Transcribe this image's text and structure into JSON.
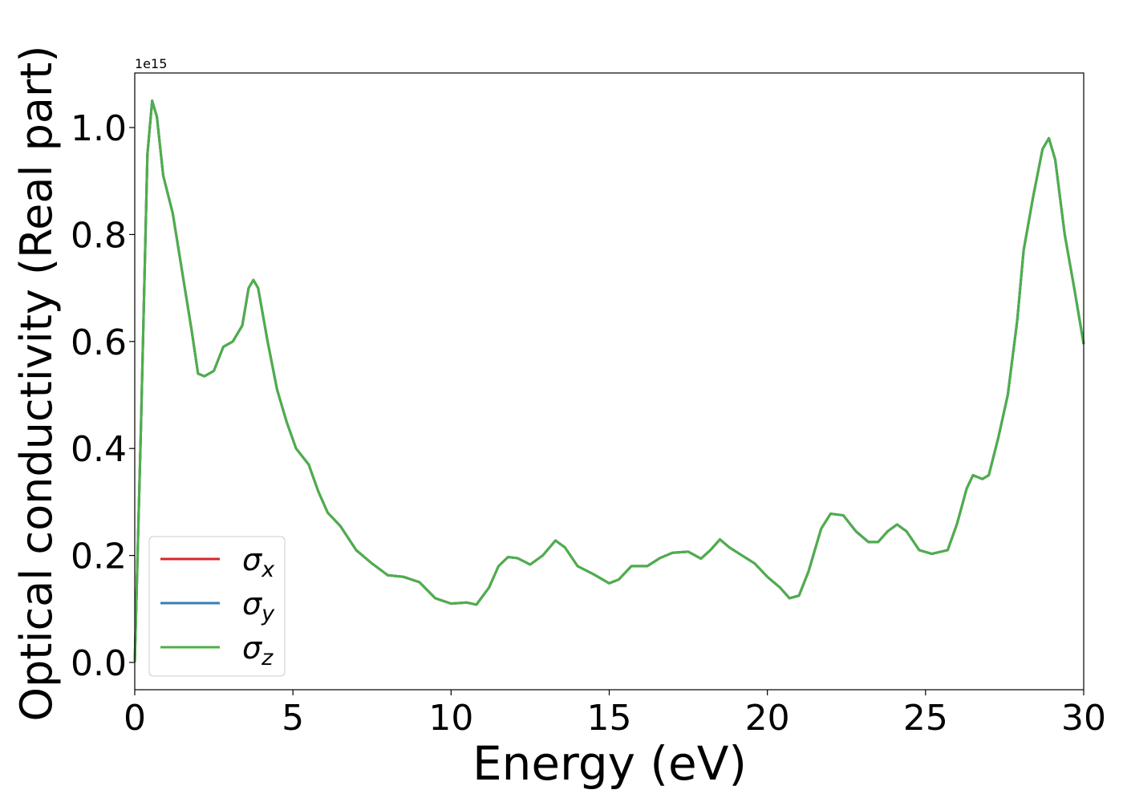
{
  "chart_data": {
    "type": "line",
    "xlabel": "Energy (eV)",
    "ylabel": "Optical conductivity (Real part)",
    "y_offset_label": "1e15",
    "xlim": [
      0,
      30
    ],
    "ylim": [
      -0.051,
      1.102
    ],
    "xticks": [
      0,
      5,
      10,
      15,
      20,
      25,
      30
    ],
    "yticks": [
      {
        "value": 0,
        "label": "0.0"
      },
      0.2,
      0.4,
      0.6,
      0.8,
      {
        "value": 1,
        "label": "1.0"
      }
    ],
    "legend": "lower left",
    "grid": false,
    "x": [
      0,
      0.2,
      0.4,
      0.55,
      0.7,
      0.9,
      1.2,
      1.5,
      1.8,
      2.0,
      2.2,
      2.5,
      2.8,
      3.1,
      3.4,
      3.6,
      3.75,
      3.9,
      4.2,
      4.5,
      4.8,
      5.1,
      5.5,
      5.8,
      6.1,
      6.5,
      7.0,
      7.5,
      8.0,
      8.5,
      9.0,
      9.5,
      10.0,
      10.5,
      10.8,
      11.2,
      11.5,
      11.8,
      12.1,
      12.5,
      12.9,
      13.3,
      13.6,
      14.0,
      14.5,
      15.0,
      15.3,
      15.7,
      16.2,
      16.6,
      17.0,
      17.5,
      17.9,
      18.2,
      18.5,
      18.8,
      19.2,
      19.6,
      20.0,
      20.4,
      20.7,
      21.0,
      21.3,
      21.7,
      22.0,
      22.4,
      22.8,
      23.2,
      23.5,
      23.8,
      24.1,
      24.4,
      24.8,
      25.2,
      25.7,
      26.0,
      26.3,
      26.5,
      26.8,
      27.0,
      27.3,
      27.6,
      27.9,
      28.1,
      28.4,
      28.7,
      28.9,
      29.1,
      29.4,
      29.7,
      30.0
    ],
    "series": [
      {
        "name": "σx",
        "color": "#d62728",
        "values": [
          0.0,
          0.45,
          0.95,
          1.05,
          1.02,
          0.91,
          0.84,
          0.73,
          0.62,
          0.54,
          0.535,
          0.545,
          0.59,
          0.6,
          0.63,
          0.7,
          0.715,
          0.7,
          0.6,
          0.51,
          0.45,
          0.4,
          0.37,
          0.32,
          0.28,
          0.255,
          0.21,
          0.185,
          0.163,
          0.16,
          0.15,
          0.12,
          0.11,
          0.112,
          0.108,
          0.14,
          0.18,
          0.197,
          0.195,
          0.183,
          0.2,
          0.228,
          0.215,
          0.18,
          0.165,
          0.148,
          0.155,
          0.18,
          0.18,
          0.195,
          0.205,
          0.207,
          0.194,
          0.21,
          0.23,
          0.215,
          0.2,
          0.185,
          0.16,
          0.14,
          0.12,
          0.125,
          0.17,
          0.25,
          0.278,
          0.275,
          0.245,
          0.225,
          0.225,
          0.245,
          0.258,
          0.245,
          0.21,
          0.203,
          0.21,
          0.26,
          0.325,
          0.35,
          0.343,
          0.35,
          0.42,
          0.5,
          0.64,
          0.77,
          0.87,
          0.96,
          0.98,
          0.94,
          0.8,
          0.7,
          0.595
        ]
      },
      {
        "name": "σy",
        "color": "#377eb8",
        "values": [
          0.0,
          0.45,
          0.95,
          1.05,
          1.02,
          0.91,
          0.84,
          0.73,
          0.62,
          0.54,
          0.535,
          0.545,
          0.59,
          0.6,
          0.63,
          0.7,
          0.715,
          0.7,
          0.6,
          0.51,
          0.45,
          0.4,
          0.37,
          0.32,
          0.28,
          0.255,
          0.21,
          0.185,
          0.163,
          0.16,
          0.15,
          0.12,
          0.11,
          0.112,
          0.108,
          0.14,
          0.18,
          0.197,
          0.195,
          0.183,
          0.2,
          0.228,
          0.215,
          0.18,
          0.165,
          0.148,
          0.155,
          0.18,
          0.18,
          0.195,
          0.205,
          0.207,
          0.194,
          0.21,
          0.23,
          0.215,
          0.2,
          0.185,
          0.16,
          0.14,
          0.12,
          0.125,
          0.17,
          0.25,
          0.278,
          0.275,
          0.245,
          0.225,
          0.225,
          0.245,
          0.258,
          0.245,
          0.21,
          0.203,
          0.21,
          0.26,
          0.325,
          0.35,
          0.343,
          0.35,
          0.42,
          0.5,
          0.64,
          0.77,
          0.87,
          0.96,
          0.98,
          0.94,
          0.8,
          0.7,
          0.595
        ]
      },
      {
        "name": "σz",
        "color": "#4daf4a",
        "values": [
          0.0,
          0.45,
          0.95,
          1.05,
          1.02,
          0.91,
          0.84,
          0.73,
          0.62,
          0.54,
          0.535,
          0.545,
          0.59,
          0.6,
          0.63,
          0.7,
          0.715,
          0.7,
          0.6,
          0.51,
          0.45,
          0.4,
          0.37,
          0.32,
          0.28,
          0.255,
          0.21,
          0.185,
          0.163,
          0.16,
          0.15,
          0.12,
          0.11,
          0.112,
          0.108,
          0.14,
          0.18,
          0.197,
          0.195,
          0.183,
          0.2,
          0.228,
          0.215,
          0.18,
          0.165,
          0.148,
          0.155,
          0.18,
          0.18,
          0.195,
          0.205,
          0.207,
          0.194,
          0.21,
          0.23,
          0.215,
          0.2,
          0.185,
          0.16,
          0.14,
          0.12,
          0.125,
          0.17,
          0.25,
          0.278,
          0.275,
          0.245,
          0.225,
          0.225,
          0.245,
          0.258,
          0.245,
          0.21,
          0.203,
          0.21,
          0.26,
          0.325,
          0.35,
          0.343,
          0.35,
          0.42,
          0.5,
          0.64,
          0.77,
          0.87,
          0.96,
          0.98,
          0.94,
          0.8,
          0.7,
          0.595
        ]
      }
    ]
  }
}
